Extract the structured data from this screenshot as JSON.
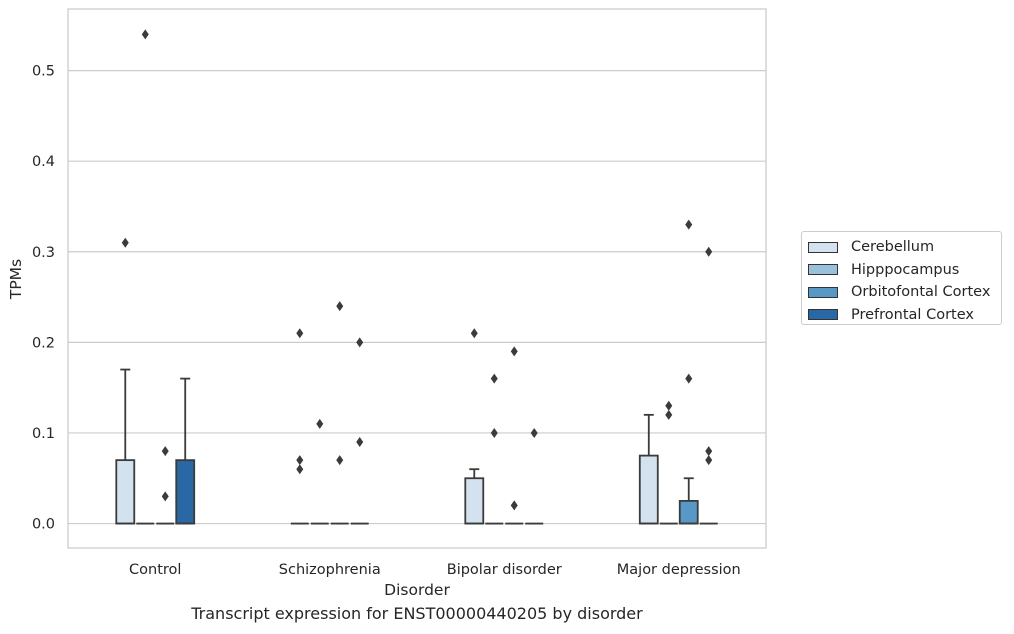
{
  "chart_data": {
    "type": "box",
    "xlabel": "Disorder",
    "ylabel": "TPMs",
    "caption": "Transcript expression for ENST00000440205 by disorder",
    "categories": [
      "Control",
      "Schizophrenia",
      "Bipolar disorder",
      "Major depression"
    ],
    "ylim": [
      -0.027,
      0.568
    ],
    "yticks": [
      0.0,
      0.1,
      0.2,
      0.3,
      0.4,
      0.5
    ],
    "grid": true,
    "legend_position": "right",
    "series": [
      {
        "name": "Cerebellum",
        "color": "#d4e2ef",
        "boxes": [
          {
            "min": 0,
            "q1": 0,
            "median": 0,
            "q3": 0.07,
            "max": 0.17,
            "outliers": [
              0.31
            ]
          },
          {
            "min": 0,
            "q1": 0,
            "median": 0,
            "q3": 0,
            "max": 0,
            "outliers": [
              0.06,
              0.07,
              0.21
            ]
          },
          {
            "min": 0,
            "q1": 0,
            "median": 0,
            "q3": 0.05,
            "max": 0.06,
            "outliers": [
              0.21
            ]
          },
          {
            "min": 0,
            "q1": 0,
            "median": 0,
            "q3": 0.075,
            "max": 0.12,
            "outliers": []
          }
        ]
      },
      {
        "name": "Hipppocampus",
        "color": "#9ac1dc",
        "boxes": [
          {
            "min": 0,
            "q1": 0,
            "median": 0,
            "q3": 0,
            "max": 0,
            "outliers": [
              0.54
            ]
          },
          {
            "min": 0,
            "q1": 0,
            "median": 0,
            "q3": 0,
            "max": 0,
            "outliers": [
              0.11
            ]
          },
          {
            "min": 0,
            "q1": 0,
            "median": 0,
            "q3": 0,
            "max": 0,
            "outliers": [
              0.1,
              0.16
            ]
          },
          {
            "min": 0,
            "q1": 0,
            "median": 0,
            "q3": 0,
            "max": 0,
            "outliers": [
              0.12,
              0.13
            ]
          }
        ]
      },
      {
        "name": "Orbitofontal Cortex",
        "color": "#5898c7",
        "boxes": [
          {
            "min": 0,
            "q1": 0,
            "median": 0,
            "q3": 0,
            "max": 0,
            "outliers": [
              0.03,
              0.08
            ]
          },
          {
            "min": 0,
            "q1": 0,
            "median": 0,
            "q3": 0,
            "max": 0,
            "outliers": [
              0.07,
              0.24
            ]
          },
          {
            "min": 0,
            "q1": 0,
            "median": 0,
            "q3": 0,
            "max": 0,
            "outliers": [
              0.02,
              0.19
            ]
          },
          {
            "min": 0,
            "q1": 0,
            "median": 0,
            "q3": 0.025,
            "max": 0.05,
            "outliers": [
              0.16,
              0.33
            ]
          }
        ]
      },
      {
        "name": "Prefrontal Cortex",
        "color": "#2a67a5",
        "boxes": [
          {
            "min": 0,
            "q1": 0,
            "median": 0,
            "q3": 0.07,
            "max": 0.16,
            "outliers": []
          },
          {
            "min": 0,
            "q1": 0,
            "median": 0,
            "q3": 0,
            "max": 0,
            "outliers": [
              0.09,
              0.2
            ]
          },
          {
            "min": 0,
            "q1": 0,
            "median": 0,
            "q3": 0,
            "max": 0,
            "outliers": [
              0.1
            ]
          },
          {
            "min": 0,
            "q1": 0,
            "median": 0,
            "q3": 0,
            "max": 0,
            "outliers": [
              0.07,
              0.08,
              0.3
            ]
          }
        ]
      }
    ]
  }
}
